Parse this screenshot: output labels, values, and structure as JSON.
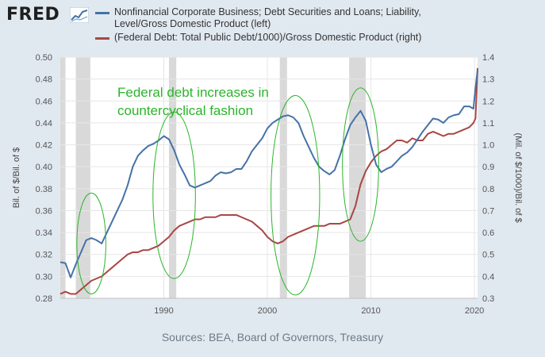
{
  "header": {
    "logo_text": "FRED",
    "logo_icon": "chart-line-icon"
  },
  "footer": {
    "sources": "Sources: BEA, Board of Governors, Treasury"
  },
  "annotation": {
    "line1": "Federal debt increases in",
    "line2": "countercyclical fashion"
  },
  "colors": {
    "left_series": "#4572a7",
    "right_series": "#aa4643",
    "recession": "#d9d9d9",
    "plot_bg": "#ffffff",
    "grid": "#e6e6e6",
    "annotation": "#2ab52a"
  },
  "chart_data": {
    "type": "line",
    "legend_placement": "top",
    "grid": true,
    "xlim": [
      1980,
      2020.3
    ],
    "x_ticks": [
      1990,
      2000,
      2010,
      2020
    ],
    "ylabel_left": "Bil. of $/Bil. of $",
    "ylabel_right": "(Mil. of $/1000)/Bil. of $",
    "ylim_left": [
      0.28,
      0.5
    ],
    "ylim_right": [
      0.3,
      1.4
    ],
    "y_ticks_left": [
      "0.28",
      "0.30",
      "0.32",
      "0.34",
      "0.36",
      "0.38",
      "0.40",
      "0.42",
      "0.44",
      "0.46",
      "0.48",
      "0.50"
    ],
    "y_ticks_right": [
      "0.3",
      "0.4",
      "0.5",
      "0.6",
      "0.7",
      "0.8",
      "0.9",
      "1.0",
      "1.1",
      "1.2",
      "1.3",
      "1.4"
    ],
    "recessions": [
      [
        1980.0,
        1980.5
      ],
      [
        1981.5,
        1982.9
      ],
      [
        1990.5,
        1991.2
      ],
      [
        2001.2,
        2001.9
      ],
      [
        2007.9,
        2009.5
      ]
    ],
    "highlights": [
      {
        "x": 1983.0,
        "y_right": 0.55,
        "x_span": 2.8,
        "y_span_right": 0.46
      },
      {
        "x": 1991.0,
        "y_right": 0.77,
        "x_span": 4.1,
        "y_span_right": 0.76
      },
      {
        "x": 2002.7,
        "y_right": 0.77,
        "x_span": 4.7,
        "y_span_right": 0.91
      },
      {
        "x": 2009.0,
        "y_right": 0.91,
        "x_span": 3.5,
        "y_span_right": 0.7
      }
    ],
    "series": [
      {
        "name": "Nonfinancial Corporate Business; Debt Securities and Loans; Liability, Level/Gross Domestic Product (left)",
        "axis": "left",
        "x": [
          1980.0,
          1980.5,
          1981.0,
          1981.5,
          1982.0,
          1982.5,
          1983.0,
          1983.5,
          1984.0,
          1984.5,
          1985.0,
          1985.5,
          1986.0,
          1986.5,
          1987.0,
          1987.5,
          1988.0,
          1988.5,
          1989.0,
          1989.5,
          1990.0,
          1990.5,
          1991.0,
          1991.5,
          1992.0,
          1992.5,
          1993.0,
          1993.5,
          1994.0,
          1994.5,
          1995.0,
          1995.5,
          1996.0,
          1996.5,
          1997.0,
          1997.5,
          1998.0,
          1998.5,
          1999.0,
          1999.5,
          2000.0,
          2000.5,
          2001.0,
          2001.5,
          2002.0,
          2002.5,
          2003.0,
          2003.5,
          2004.0,
          2004.5,
          2005.0,
          2005.5,
          2006.0,
          2006.5,
          2007.0,
          2007.5,
          2008.0,
          2008.5,
          2009.0,
          2009.5,
          2010.0,
          2010.5,
          2011.0,
          2011.5,
          2012.0,
          2012.5,
          2013.0,
          2013.5,
          2014.0,
          2014.5,
          2015.0,
          2015.5,
          2016.0,
          2016.5,
          2017.0,
          2017.5,
          2018.0,
          2018.5,
          2019.0,
          2019.5,
          2019.9,
          2020.1,
          2020.3
        ],
        "values": [
          0.313,
          0.312,
          0.299,
          0.311,
          0.322,
          0.333,
          0.335,
          0.333,
          0.33,
          0.34,
          0.35,
          0.36,
          0.37,
          0.383,
          0.4,
          0.41,
          0.415,
          0.419,
          0.421,
          0.424,
          0.428,
          0.425,
          0.415,
          0.402,
          0.393,
          0.383,
          0.381,
          0.383,
          0.385,
          0.387,
          0.392,
          0.395,
          0.394,
          0.395,
          0.398,
          0.398,
          0.405,
          0.414,
          0.42,
          0.426,
          0.435,
          0.44,
          0.443,
          0.446,
          0.447,
          0.445,
          0.44,
          0.428,
          0.418,
          0.408,
          0.4,
          0.396,
          0.393,
          0.397,
          0.41,
          0.425,
          0.438,
          0.445,
          0.451,
          0.442,
          0.42,
          0.402,
          0.395,
          0.398,
          0.4,
          0.405,
          0.41,
          0.413,
          0.418,
          0.425,
          0.432,
          0.438,
          0.444,
          0.443,
          0.44,
          0.445,
          0.447,
          0.448,
          0.455,
          0.455,
          0.453,
          0.472,
          0.488
        ]
      },
      {
        "name": "(Federal Debt: Total Public Debt/1000)/Gross Domestic Product (right)",
        "axis": "right",
        "x": [
          1980.0,
          1980.5,
          1981.0,
          1981.5,
          1982.0,
          1982.5,
          1983.0,
          1983.5,
          1984.0,
          1984.5,
          1985.0,
          1985.5,
          1986.0,
          1986.5,
          1987.0,
          1987.5,
          1988.0,
          1988.5,
          1989.0,
          1989.5,
          1990.0,
          1990.5,
          1991.0,
          1991.5,
          1992.0,
          1992.5,
          1993.0,
          1993.5,
          1994.0,
          1994.5,
          1995.0,
          1995.5,
          1996.0,
          1996.5,
          1997.0,
          1997.5,
          1998.0,
          1998.5,
          1999.0,
          1999.5,
          2000.0,
          2000.5,
          2001.0,
          2001.5,
          2002.0,
          2002.5,
          2003.0,
          2003.5,
          2004.0,
          2004.5,
          2005.0,
          2005.5,
          2006.0,
          2006.5,
          2007.0,
          2007.5,
          2008.0,
          2008.5,
          2009.0,
          2009.5,
          2010.0,
          2010.5,
          2011.0,
          2011.5,
          2012.0,
          2012.5,
          2013.0,
          2013.5,
          2014.0,
          2014.5,
          2015.0,
          2015.5,
          2016.0,
          2016.5,
          2017.0,
          2017.5,
          2018.0,
          2018.5,
          2019.0,
          2019.5,
          2019.9,
          2020.1,
          2020.3
        ],
        "values": [
          0.32,
          0.33,
          0.32,
          0.32,
          0.34,
          0.36,
          0.38,
          0.39,
          0.4,
          0.42,
          0.44,
          0.46,
          0.48,
          0.5,
          0.51,
          0.51,
          0.52,
          0.52,
          0.53,
          0.54,
          0.56,
          0.58,
          0.61,
          0.63,
          0.64,
          0.65,
          0.66,
          0.66,
          0.67,
          0.67,
          0.67,
          0.68,
          0.68,
          0.68,
          0.68,
          0.67,
          0.66,
          0.65,
          0.63,
          0.61,
          0.58,
          0.56,
          0.55,
          0.56,
          0.58,
          0.59,
          0.6,
          0.61,
          0.62,
          0.63,
          0.63,
          0.63,
          0.64,
          0.64,
          0.64,
          0.65,
          0.66,
          0.72,
          0.82,
          0.88,
          0.92,
          0.95,
          0.97,
          0.98,
          1.0,
          1.02,
          1.02,
          1.01,
          1.03,
          1.02,
          1.02,
          1.05,
          1.06,
          1.05,
          1.04,
          1.05,
          1.05,
          1.06,
          1.07,
          1.08,
          1.1,
          1.12,
          1.35
        ]
      }
    ]
  }
}
